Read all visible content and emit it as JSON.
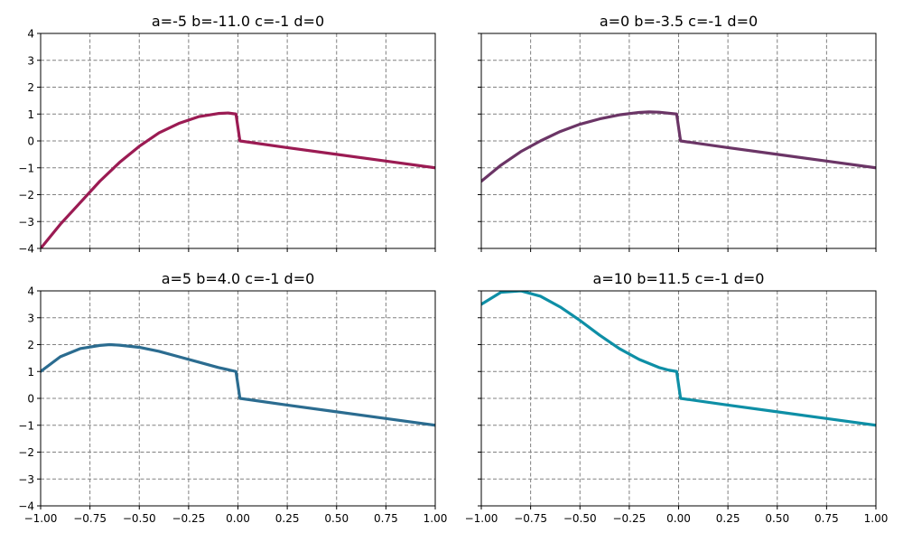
{
  "chart_data": [
    {
      "type": "line",
      "title": "a=-5 b=-11.0 c=-1 d=0",
      "xlim": [
        -1.0,
        1.0
      ],
      "ylim": [
        -4,
        4
      ],
      "grid": true,
      "color": "#9b1b53",
      "x_tick_labels_visible": false,
      "y_tick_labels_visible": true,
      "x": [
        -1.0,
        -0.9,
        -0.8,
        -0.7,
        -0.6,
        -0.5,
        -0.4,
        -0.3,
        -0.2,
        -0.1,
        -0.05,
        -0.01,
        0.01,
        0.25,
        0.5,
        0.75,
        1.0
      ],
      "y": [
        -4.0,
        -3.1,
        -2.3,
        -1.5,
        -0.8,
        -0.2,
        0.3,
        0.65,
        0.9,
        1.02,
        1.04,
        1.0,
        0.0,
        -0.25,
        -0.5,
        -0.75,
        -1.0
      ]
    },
    {
      "type": "line",
      "title": "a=0 b=-3.5 c=-1 d=0",
      "xlim": [
        -1.0,
        1.0
      ],
      "ylim": [
        -4,
        4
      ],
      "grid": true,
      "color": "#6b3566",
      "x_tick_labels_visible": false,
      "y_tick_labels_visible": false,
      "x": [
        -1.0,
        -0.9,
        -0.8,
        -0.7,
        -0.6,
        -0.5,
        -0.4,
        -0.3,
        -0.2,
        -0.15,
        -0.1,
        -0.01,
        0.01,
        0.25,
        0.5,
        0.75,
        1.0
      ],
      "y": [
        -1.5,
        -0.9,
        -0.4,
        0.0,
        0.35,
        0.62,
        0.82,
        0.97,
        1.06,
        1.08,
        1.07,
        1.0,
        0.0,
        -0.25,
        -0.5,
        -0.75,
        -1.0
      ]
    },
    {
      "type": "line",
      "title": "a=5 b=4.0 c=-1 d=0",
      "xlim": [
        -1.0,
        1.0
      ],
      "ylim": [
        -4,
        4
      ],
      "grid": true,
      "color": "#2b6c90",
      "x_tick_labels_visible": true,
      "y_tick_labels_visible": true,
      "x": [
        -1.0,
        -0.9,
        -0.8,
        -0.7,
        -0.65,
        -0.6,
        -0.5,
        -0.4,
        -0.3,
        -0.2,
        -0.1,
        -0.01,
        0.01,
        0.25,
        0.5,
        0.75,
        1.0
      ],
      "y": [
        1.0,
        1.55,
        1.85,
        1.97,
        2.0,
        1.98,
        1.9,
        1.75,
        1.55,
        1.35,
        1.15,
        1.0,
        0.0,
        -0.25,
        -0.5,
        -0.75,
        -1.0
      ]
    },
    {
      "type": "line",
      "title": "a=10 b=11.5 c=-1 d=0",
      "xlim": [
        -1.0,
        1.0
      ],
      "ylim": [
        -4,
        4
      ],
      "grid": true,
      "color": "#0e8fa6",
      "x_tick_labels_visible": true,
      "y_tick_labels_visible": false,
      "x": [
        -1.0,
        -0.9,
        -0.8,
        -0.7,
        -0.6,
        -0.5,
        -0.4,
        -0.3,
        -0.2,
        -0.1,
        -0.05,
        -0.01,
        0.01,
        0.25,
        0.5,
        0.75,
        1.0
      ],
      "y": [
        3.5,
        3.95,
        4.0,
        3.8,
        3.4,
        2.9,
        2.35,
        1.85,
        1.45,
        1.15,
        1.05,
        1.0,
        0.0,
        -0.25,
        -0.5,
        -0.75,
        -1.0
      ]
    }
  ],
  "x_ticks": [
    -1.0,
    -0.75,
    -0.5,
    -0.25,
    0.0,
    0.25,
    0.5,
    0.75,
    1.0
  ],
  "x_tick_labels": [
    "−1.00",
    "−0.75",
    "−0.50",
    "−0.25",
    "0.00",
    "0.25",
    "0.50",
    "0.75",
    "1.00"
  ],
  "y_ticks": [
    -4,
    -3,
    -2,
    -1,
    0,
    1,
    2,
    3,
    4
  ],
  "y_tick_labels": [
    "−4",
    "−3",
    "−2",
    "−1",
    "0",
    "1",
    "2",
    "3",
    "4"
  ]
}
